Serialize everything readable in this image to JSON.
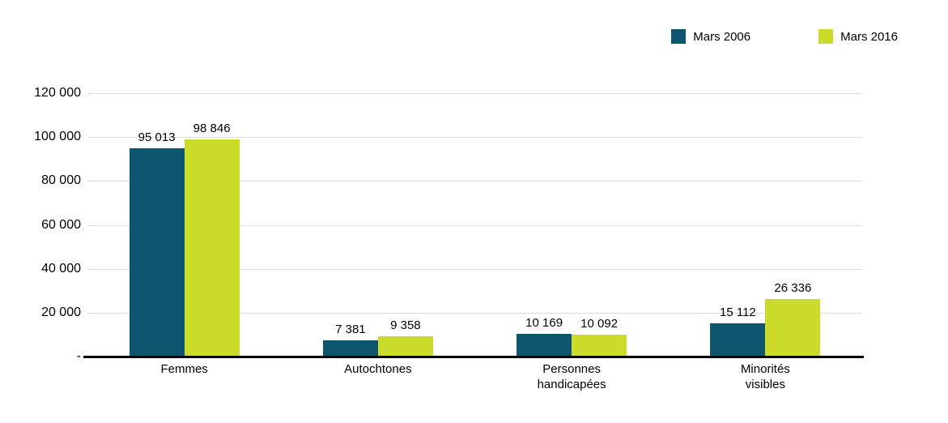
{
  "chart_data": {
    "type": "bar",
    "title": "",
    "xlabel": "",
    "ylabel": "",
    "grid": true,
    "legend_position": "top-right",
    "categories": [
      "Femmes",
      "Autochtones",
      "Personnes handicapées",
      "Minorités visibles"
    ],
    "categories_wrapped": [
      "Femmes",
      "Autochtones",
      "Personnes\nhandicapées",
      "Minorités\nvisibles"
    ],
    "series": [
      {
        "name": "Mars 2006",
        "color": "#0e5570",
        "values": [
          95013,
          7381,
          10169,
          15112
        ],
        "labels": [
          "95 013",
          "7 381",
          "10 169",
          "15 112"
        ]
      },
      {
        "name": "Mars 2016",
        "color": "#cbdb2a",
        "values": [
          98846,
          9358,
          10092,
          26336
        ],
        "labels": [
          "98 846",
          "9 358",
          "10 092",
          "26 336"
        ]
      }
    ],
    "y_axis": {
      "min": 0,
      "max": 120000,
      "step": 20000,
      "tick_labels": [
        "-",
        "20 000",
        "40 000",
        "60 000",
        "80 000",
        "100 000",
        "120 000"
      ]
    }
  }
}
